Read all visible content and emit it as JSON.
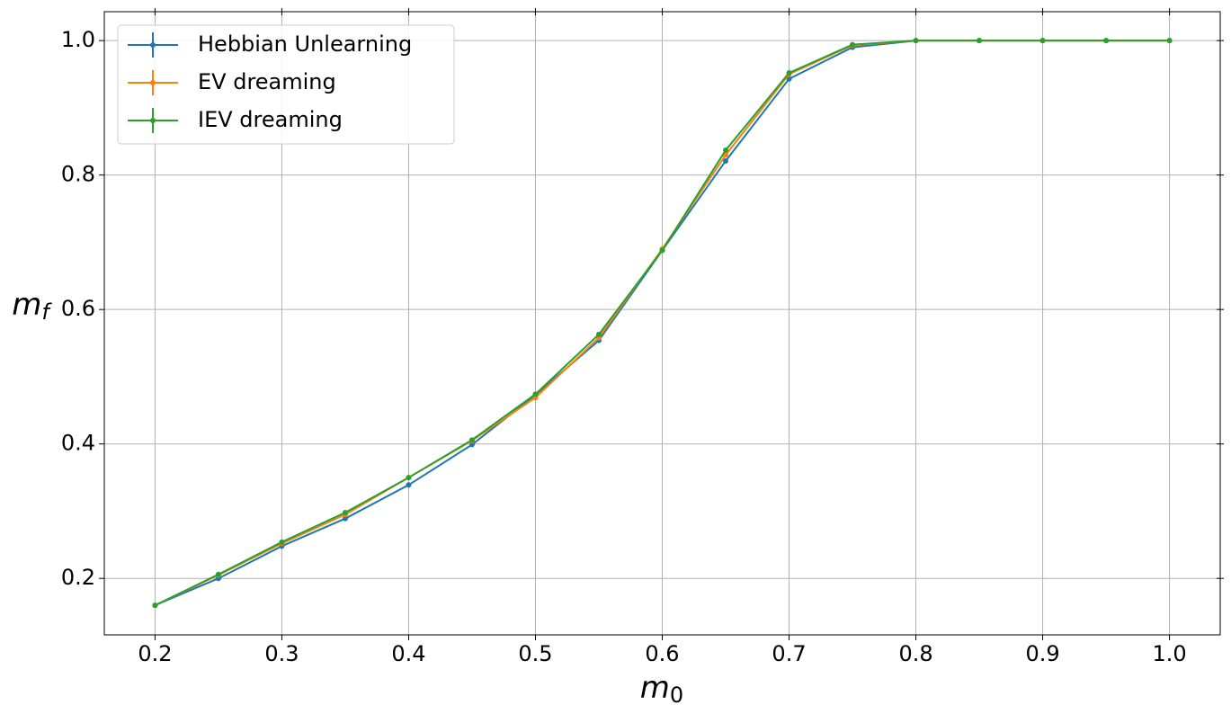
{
  "chart_data": {
    "type": "line",
    "xlabel": {
      "base": "m",
      "sub": "0"
    },
    "ylabel": {
      "base": "m",
      "sub": "f"
    },
    "x": [
      0.2,
      0.25,
      0.3,
      0.35,
      0.4,
      0.45,
      0.5,
      0.55,
      0.6,
      0.65,
      0.7,
      0.75,
      0.8,
      0.85,
      0.9,
      0.95,
      1
    ],
    "series": [
      {
        "name": "Hebbian Unlearning",
        "color": "#1f77b4",
        "values": [
          0.16,
          0.2,
          0.248,
          0.289,
          0.339,
          0.399,
          0.473,
          0.554,
          0.688,
          0.821,
          0.943,
          0.99,
          1,
          1,
          1,
          1,
          1
        ]
      },
      {
        "name": "EV dreaming",
        "color": "#ff7f0e",
        "values": [
          0.16,
          0.205,
          0.252,
          0.295,
          0.35,
          0.405,
          0.469,
          0.558,
          0.69,
          0.83,
          0.95,
          0.993,
          1,
          1,
          1,
          1,
          1
        ]
      },
      {
        "name": "IEV dreaming",
        "color": "#2ca02c",
        "values": [
          0.16,
          0.206,
          0.254,
          0.298,
          0.35,
          0.406,
          0.474,
          0.563,
          0.688,
          0.837,
          0.952,
          0.994,
          1,
          1,
          1,
          1,
          1
        ]
      }
    ],
    "xlim": [
      0.16,
      1.04
    ],
    "ylim": [
      0.116,
      1.043
    ],
    "xticks": [
      0.2,
      0.3,
      0.4,
      0.5,
      0.6,
      0.7,
      0.8,
      0.9,
      {
        "value": 1,
        "label": "1.0"
      }
    ],
    "yticks": [
      0.2,
      0.4,
      0.6,
      0.8,
      {
        "value": 1,
        "label": "1.0"
      }
    ],
    "grid": true,
    "legend": "upper-left"
  }
}
